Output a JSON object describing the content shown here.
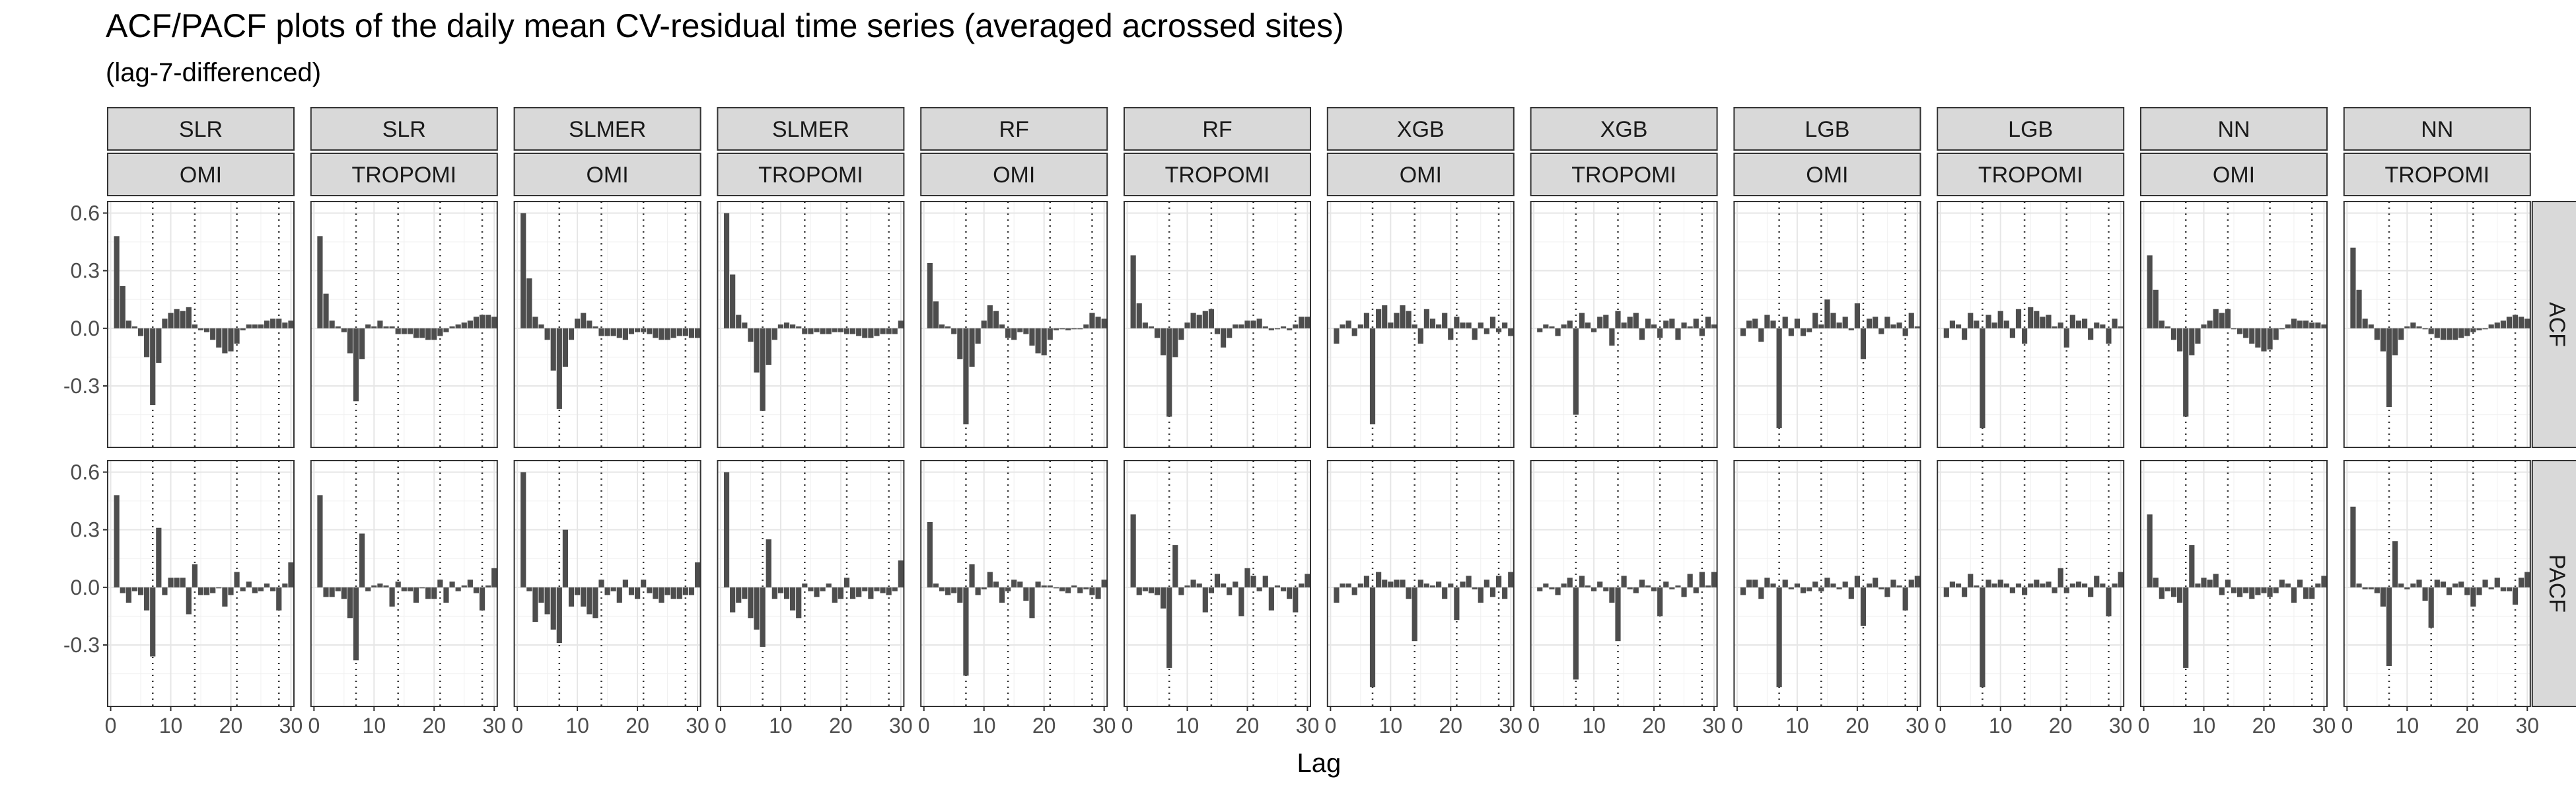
{
  "title": "ACF/PACF plots of the daily mean CV-residual time series (averaged acrossed sites)",
  "subtitle": "(lag-7-differenced)",
  "chart_data": {
    "type": "bar",
    "title": "ACF/PACF plots of the daily mean CV-residual time series (averaged acrossed sites)",
    "subtitle": "(lag-7-differenced)",
    "xlabel": "Lag",
    "ylabel": "",
    "xlim": [
      0,
      30
    ],
    "ylim": [
      -0.62,
      0.66
    ],
    "x_ticks": [
      0,
      10,
      20,
      30
    ],
    "y_ticks": [
      -0.3,
      0.0,
      0.3,
      0.6
    ],
    "y_tick_labels": [
      "-0.3",
      "0.0",
      "0.3",
      "0.6"
    ],
    "seasonal_lag_lines": [
      7,
      14,
      21,
      28
    ],
    "grid": true,
    "lags": [
      1,
      2,
      3,
      4,
      5,
      6,
      7,
      8,
      9,
      10,
      11,
      12,
      13,
      14,
      15,
      16,
      17,
      18,
      19,
      20,
      21,
      22,
      23,
      24,
      25,
      26,
      27,
      28,
      29,
      30
    ],
    "column_models": [
      "SLR",
      "SLR",
      "SLMER",
      "SLMER",
      "RF",
      "RF",
      "XGB",
      "XGB",
      "LGB",
      "LGB",
      "NN",
      "NN"
    ],
    "column_sensors": [
      "OMI",
      "TROPOMI",
      "OMI",
      "TROPOMI",
      "OMI",
      "TROPOMI",
      "OMI",
      "TROPOMI",
      "OMI",
      "TROPOMI",
      "OMI",
      "TROPOMI"
    ],
    "row_labels": [
      "ACF",
      "PACF"
    ],
    "panels": [
      [
        {
          "model": "SLR",
          "sensor": "OMI",
          "stat": "ACF",
          "values": [
            0.48,
            0.22,
            0.04,
            0.01,
            -0.04,
            -0.15,
            -0.4,
            -0.18,
            0.05,
            0.08,
            0.1,
            0.09,
            0.11,
            0.02,
            -0.01,
            -0.02,
            -0.06,
            -0.1,
            -0.13,
            -0.12,
            -0.08,
            -0.01,
            0.02,
            0.02,
            0.02,
            0.04,
            0.05,
            0.05,
            0.03,
            0.04
          ]
        },
        {
          "model": "SLR",
          "sensor": "TROPOMI",
          "stat": "ACF",
          "values": [
            0.48,
            0.18,
            0.04,
            0.01,
            -0.02,
            -0.13,
            -0.38,
            -0.16,
            0.02,
            0.01,
            0.04,
            0.01,
            0.01,
            -0.03,
            -0.03,
            -0.03,
            -0.05,
            -0.05,
            -0.06,
            -0.06,
            -0.04,
            -0.02,
            0.01,
            0.02,
            0.03,
            0.04,
            0.06,
            0.07,
            0.07,
            0.06
          ]
        },
        {
          "model": "SLMER",
          "sensor": "OMI",
          "stat": "ACF",
          "values": [
            0.6,
            0.26,
            0.06,
            0.02,
            -0.06,
            -0.22,
            -0.42,
            -0.2,
            -0.06,
            0.05,
            0.08,
            0.04,
            0.01,
            -0.04,
            -0.04,
            -0.04,
            -0.05,
            -0.06,
            -0.03,
            -0.02,
            -0.02,
            -0.03,
            -0.05,
            -0.06,
            -0.06,
            -0.05,
            -0.04,
            -0.04,
            -0.05,
            -0.05
          ]
        },
        {
          "model": "SLMER",
          "sensor": "TROPOMI",
          "stat": "ACF",
          "values": [
            0.6,
            0.28,
            0.07,
            0.03,
            -0.07,
            -0.23,
            -0.43,
            -0.19,
            -0.06,
            0.02,
            0.03,
            0.02,
            0.01,
            -0.03,
            -0.03,
            -0.02,
            -0.03,
            -0.03,
            -0.02,
            -0.02,
            -0.03,
            -0.03,
            -0.04,
            -0.05,
            -0.05,
            -0.04,
            -0.03,
            -0.03,
            -0.03,
            0.04
          ]
        },
        {
          "model": "RF",
          "sensor": "OMI",
          "stat": "ACF",
          "values": [
            0.34,
            0.14,
            0.02,
            0.01,
            -0.03,
            -0.16,
            -0.5,
            -0.2,
            -0.08,
            0.04,
            0.12,
            0.09,
            0.02,
            -0.05,
            -0.06,
            -0.02,
            -0.03,
            -0.09,
            -0.13,
            -0.14,
            -0.06,
            -0.01,
            0.0,
            -0.01,
            0.0,
            0.0,
            0.02,
            0.08,
            0.06,
            0.05
          ]
        },
        {
          "model": "RF",
          "sensor": "TROPOMI",
          "stat": "ACF",
          "values": [
            0.38,
            0.13,
            0.03,
            0.01,
            -0.05,
            -0.14,
            -0.46,
            -0.15,
            -0.06,
            0.03,
            0.08,
            0.07,
            0.09,
            0.1,
            -0.03,
            -0.1,
            -0.05,
            0.02,
            0.02,
            0.04,
            0.04,
            0.05,
            0.01,
            -0.01,
            0.0,
            0.01,
            -0.01,
            0.02,
            0.06,
            0.06
          ]
        },
        {
          "model": "XGB",
          "sensor": "OMI",
          "stat": "ACF",
          "values": [
            -0.08,
            0.02,
            0.04,
            -0.04,
            0.02,
            0.08,
            -0.5,
            0.1,
            0.12,
            0.03,
            0.08,
            0.12,
            0.09,
            0.02,
            -0.08,
            0.1,
            0.05,
            0.02,
            0.08,
            -0.06,
            0.06,
            0.03,
            0.03,
            -0.06,
            0.03,
            -0.03,
            0.06,
            -0.02,
            0.03,
            -0.04
          ]
        },
        {
          "model": "XGB",
          "sensor": "TROPOMI",
          "stat": "ACF",
          "values": [
            -0.02,
            0.02,
            0.01,
            -0.04,
            0.02,
            0.04,
            -0.45,
            0.08,
            0.03,
            -0.02,
            0.06,
            0.07,
            -0.09,
            0.09,
            0.03,
            0.06,
            0.08,
            -0.06,
            0.05,
            0.02,
            -0.05,
            0.04,
            0.05,
            -0.06,
            0.03,
            0.01,
            0.05,
            -0.04,
            0.06,
            0.02
          ]
        },
        {
          "model": "LGB",
          "sensor": "OMI",
          "stat": "ACF",
          "values": [
            -0.04,
            0.04,
            0.05,
            -0.07,
            0.07,
            0.04,
            -0.52,
            0.06,
            -0.04,
            0.05,
            -0.04,
            -0.02,
            0.08,
            0.02,
            0.15,
            0.08,
            0.03,
            0.06,
            -0.01,
            0.13,
            -0.16,
            0.05,
            0.06,
            -0.03,
            0.06,
            0.02,
            0.03,
            -0.04,
            0.08,
            0.01
          ]
        },
        {
          "model": "LGB",
          "sensor": "TROPOMI",
          "stat": "ACF",
          "values": [
            -0.05,
            0.04,
            0.02,
            -0.06,
            0.08,
            0.04,
            -0.52,
            0.07,
            0.03,
            0.09,
            0.04,
            -0.05,
            0.1,
            -0.08,
            0.11,
            0.09,
            0.06,
            0.07,
            0.01,
            0.03,
            -0.1,
            0.07,
            0.04,
            0.05,
            -0.06,
            0.03,
            0.02,
            -0.08,
            0.05,
            0.01
          ]
        },
        {
          "model": "NN",
          "sensor": "OMI",
          "stat": "ACF",
          "values": [
            0.38,
            0.2,
            0.04,
            0.01,
            -0.06,
            -0.12,
            -0.46,
            -0.14,
            -0.08,
            0.02,
            0.04,
            0.1,
            0.08,
            0.1,
            0.0,
            -0.03,
            -0.05,
            -0.08,
            -0.1,
            -0.12,
            -0.11,
            -0.06,
            0.0,
            0.02,
            0.05,
            0.04,
            0.04,
            0.03,
            0.03,
            0.02
          ]
        },
        {
          "model": "NN",
          "sensor": "TROPOMI",
          "stat": "ACF",
          "values": [
            0.42,
            0.2,
            0.05,
            0.02,
            -0.06,
            -0.12,
            -0.41,
            -0.14,
            -0.06,
            0.01,
            0.03,
            0.01,
            0.0,
            -0.03,
            -0.05,
            -0.06,
            -0.06,
            -0.06,
            -0.05,
            -0.04,
            -0.02,
            -0.01,
            0.0,
            0.02,
            0.03,
            0.04,
            0.06,
            0.07,
            0.06,
            0.05
          ]
        }
      ],
      [
        {
          "model": "SLR",
          "sensor": "OMI",
          "stat": "PACF",
          "values": [
            0.48,
            -0.03,
            -0.08,
            -0.02,
            -0.04,
            -0.12,
            -0.36,
            0.31,
            -0.04,
            0.05,
            0.05,
            0.05,
            -0.14,
            0.12,
            -0.04,
            -0.04,
            -0.03,
            0.0,
            -0.1,
            -0.04,
            0.08,
            -0.02,
            0.03,
            -0.03,
            -0.02,
            0.02,
            -0.02,
            -0.12,
            0.02,
            0.13
          ]
        },
        {
          "model": "SLR",
          "sensor": "TROPOMI",
          "stat": "PACF",
          "values": [
            0.48,
            -0.05,
            -0.05,
            -0.02,
            -0.06,
            -0.16,
            -0.38,
            0.28,
            -0.02,
            0.01,
            0.02,
            0.01,
            -0.1,
            0.03,
            -0.02,
            -0.02,
            -0.08,
            0.0,
            -0.06,
            -0.06,
            0.04,
            -0.08,
            0.03,
            -0.02,
            0.01,
            0.04,
            -0.03,
            -0.12,
            0.01,
            0.1
          ]
        },
        {
          "model": "SLMER",
          "sensor": "OMI",
          "stat": "PACF",
          "values": [
            0.6,
            -0.02,
            -0.18,
            -0.08,
            -0.14,
            -0.22,
            -0.29,
            0.3,
            -0.1,
            -0.04,
            -0.1,
            -0.14,
            -0.16,
            0.04,
            -0.04,
            -0.02,
            -0.08,
            0.04,
            -0.04,
            -0.06,
            0.04,
            -0.03,
            -0.06,
            -0.08,
            -0.04,
            -0.06,
            -0.06,
            -0.04,
            -0.04,
            0.13
          ]
        },
        {
          "model": "SLMER",
          "sensor": "TROPOMI",
          "stat": "PACF",
          "values": [
            0.6,
            -0.13,
            -0.08,
            -0.06,
            -0.16,
            -0.22,
            -0.31,
            0.25,
            -0.06,
            -0.03,
            -0.06,
            -0.12,
            -0.16,
            0.02,
            -0.02,
            -0.05,
            -0.02,
            0.02,
            -0.08,
            -0.06,
            0.05,
            -0.06,
            -0.05,
            -0.02,
            -0.06,
            -0.02,
            -0.03,
            -0.04,
            -0.02,
            0.14
          ]
        },
        {
          "model": "RF",
          "sensor": "OMI",
          "stat": "PACF",
          "values": [
            0.34,
            0.02,
            -0.02,
            -0.04,
            -0.03,
            -0.08,
            -0.46,
            0.12,
            -0.04,
            -0.01,
            0.08,
            0.03,
            -0.08,
            -0.02,
            0.04,
            0.03,
            -0.07,
            -0.16,
            0.03,
            0.01,
            0.01,
            0.0,
            -0.02,
            -0.03,
            0.01,
            -0.03,
            -0.01,
            -0.04,
            -0.06,
            0.04
          ]
        },
        {
          "model": "RF",
          "sensor": "TROPOMI",
          "stat": "PACF",
          "values": [
            0.38,
            -0.04,
            -0.02,
            -0.03,
            -0.04,
            -0.11,
            -0.42,
            0.22,
            -0.04,
            0.01,
            0.04,
            0.02,
            -0.13,
            -0.03,
            0.07,
            0.02,
            -0.04,
            0.03,
            -0.15,
            0.1,
            0.06,
            -0.02,
            0.06,
            -0.12,
            0.01,
            -0.02,
            -0.06,
            -0.13,
            0.02,
            0.07
          ]
        },
        {
          "model": "XGB",
          "sensor": "OMI",
          "stat": "PACF",
          "values": [
            -0.08,
            0.02,
            0.02,
            -0.04,
            0.02,
            0.06,
            -0.52,
            0.08,
            0.04,
            0.03,
            0.04,
            0.04,
            -0.06,
            -0.28,
            0.04,
            0.02,
            0.01,
            0.03,
            -0.06,
            0.02,
            -0.17,
            0.03,
            0.06,
            -0.01,
            -0.08,
            0.04,
            -0.05,
            0.06,
            -0.06,
            0.08
          ]
        },
        {
          "model": "XGB",
          "sensor": "TROPOMI",
          "stat": "PACF",
          "values": [
            -0.02,
            0.02,
            -0.01,
            -0.04,
            0.02,
            0.05,
            -0.48,
            0.06,
            0.01,
            -0.02,
            0.03,
            -0.02,
            -0.08,
            -0.28,
            0.06,
            -0.01,
            -0.03,
            0.04,
            0.01,
            -0.02,
            -0.15,
            0.03,
            -0.01,
            0.01,
            -0.05,
            0.07,
            -0.03,
            0.08,
            0.01,
            0.08
          ]
        },
        {
          "model": "LGB",
          "sensor": "OMI",
          "stat": "PACF",
          "values": [
            -0.04,
            0.04,
            0.04,
            -0.06,
            0.05,
            0.02,
            -0.52,
            0.04,
            -0.01,
            0.02,
            -0.03,
            -0.02,
            0.03,
            -0.02,
            0.05,
            0.02,
            -0.01,
            0.03,
            -0.06,
            0.06,
            -0.2,
            0.02,
            0.05,
            -0.01,
            -0.05,
            0.04,
            0.01,
            -0.12,
            0.04,
            0.06
          ]
        },
        {
          "model": "LGB",
          "sensor": "TROPOMI",
          "stat": "PACF",
          "values": [
            -0.05,
            0.03,
            0.02,
            -0.05,
            0.07,
            0.01,
            -0.52,
            0.04,
            0.02,
            0.04,
            0.02,
            -0.03,
            0.02,
            -0.04,
            0.02,
            0.04,
            0.02,
            0.03,
            -0.03,
            0.1,
            -0.03,
            0.02,
            0.03,
            0.02,
            -0.05,
            0.06,
            0.02,
            -0.15,
            0.02,
            0.08
          ]
        },
        {
          "model": "NN",
          "sensor": "OMI",
          "stat": "PACF",
          "values": [
            0.38,
            0.05,
            -0.06,
            -0.02,
            -0.05,
            -0.08,
            -0.42,
            0.22,
            0.02,
            0.05,
            0.04,
            0.07,
            -0.04,
            0.04,
            -0.03,
            -0.05,
            -0.03,
            -0.06,
            -0.04,
            -0.03,
            -0.05,
            -0.03,
            0.04,
            0.02,
            -0.08,
            0.04,
            -0.06,
            -0.06,
            0.02,
            0.06
          ]
        },
        {
          "model": "NN",
          "sensor": "TROPOMI",
          "stat": "PACF",
          "values": [
            0.42,
            0.02,
            -0.01,
            -0.01,
            -0.03,
            -0.1,
            -0.41,
            0.24,
            0.02,
            -0.01,
            0.02,
            0.04,
            -0.07,
            -0.21,
            0.04,
            0.03,
            -0.04,
            0.02,
            0.03,
            -0.04,
            -0.1,
            -0.04,
            0.04,
            -0.01,
            0.05,
            -0.02,
            -0.02,
            -0.09,
            0.05,
            0.08
          ]
        }
      ]
    ]
  }
}
